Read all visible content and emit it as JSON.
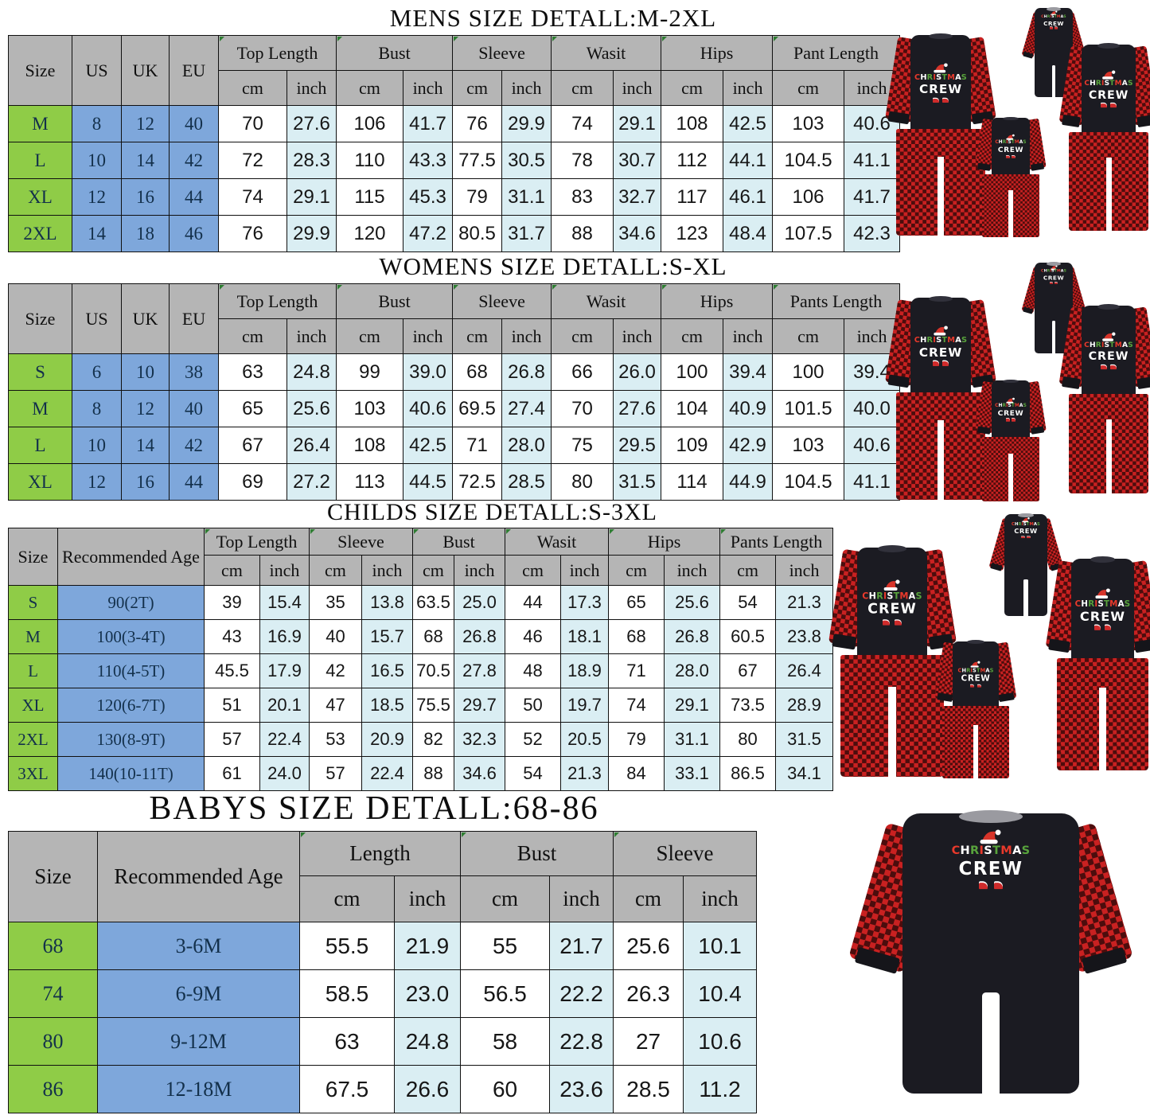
{
  "colors": {
    "header_bg": "#b5b5b5",
    "size_col_bg": "#8fcc47",
    "meta_col_bg": "#7ea7db",
    "cm_col_bg": "#ffffff",
    "inch_col_bg": "#daeef3",
    "plaid_red": "#c92121",
    "pajama_black": "#1b1b22"
  },
  "product_graphic": {
    "line1": "CHRISTMAS",
    "line2": "CREW"
  },
  "tables": [
    {
      "id": "mens",
      "title": "MENS SIZE DETALL:M-2XL",
      "single_cols": [
        "Size",
        "US",
        "UK",
        "EU"
      ],
      "group_cols": [
        "Top Length",
        "Bust",
        "Sleeve",
        "Wasit",
        "Hips",
        "Pant Length"
      ],
      "sub_labels": [
        "cm",
        "inch"
      ],
      "rows": [
        {
          "size": "M",
          "meta": [
            "8",
            "12",
            "40"
          ],
          "data": [
            "70",
            "27.6",
            "106",
            "41.7",
            "76",
            "29.9",
            "74",
            "29.1",
            "108",
            "42.5",
            "103",
            "40.6"
          ]
        },
        {
          "size": "L",
          "meta": [
            "10",
            "14",
            "42"
          ],
          "data": [
            "72",
            "28.3",
            "110",
            "43.3",
            "77.5",
            "30.5",
            "78",
            "30.7",
            "112",
            "44.1",
            "104.5",
            "41.1"
          ]
        },
        {
          "size": "XL",
          "meta": [
            "12",
            "16",
            "44"
          ],
          "data": [
            "74",
            "29.1",
            "115",
            "45.3",
            "79",
            "31.1",
            "83",
            "32.7",
            "117",
            "46.1",
            "106",
            "41.7"
          ]
        },
        {
          "size": "2XL",
          "meta": [
            "14",
            "18",
            "46"
          ],
          "data": [
            "76",
            "29.9",
            "120",
            "47.2",
            "80.5",
            "31.7",
            "88",
            "34.6",
            "123",
            "48.4",
            "107.5",
            "42.3"
          ]
        }
      ]
    },
    {
      "id": "womens",
      "title": "WOMENS SIZE DETALL:S-XL",
      "single_cols": [
        "Size",
        "US",
        "UK",
        "EU"
      ],
      "group_cols": [
        "Top Length",
        "Bust",
        "Sleeve",
        "Wasit",
        "Hips",
        "Pants Length"
      ],
      "sub_labels": [
        "cm",
        "inch"
      ],
      "rows": [
        {
          "size": "S",
          "meta": [
            "6",
            "10",
            "38"
          ],
          "data": [
            "63",
            "24.8",
            "99",
            "39.0",
            "68",
            "26.8",
            "66",
            "26.0",
            "100",
            "39.4",
            "100",
            "39.4"
          ]
        },
        {
          "size": "M",
          "meta": [
            "8",
            "12",
            "40"
          ],
          "data": [
            "65",
            "25.6",
            "103",
            "40.6",
            "69.5",
            "27.4",
            "70",
            "27.6",
            "104",
            "40.9",
            "101.5",
            "40.0"
          ]
        },
        {
          "size": "L",
          "meta": [
            "10",
            "14",
            "42"
          ],
          "data": [
            "67",
            "26.4",
            "108",
            "42.5",
            "71",
            "28.0",
            "75",
            "29.5",
            "109",
            "42.9",
            "103",
            "40.6"
          ]
        },
        {
          "size": "XL",
          "meta": [
            "12",
            "16",
            "44"
          ],
          "data": [
            "69",
            "27.2",
            "113",
            "44.5",
            "72.5",
            "28.5",
            "80",
            "31.5",
            "114",
            "44.9",
            "104.5",
            "41.1"
          ]
        }
      ]
    },
    {
      "id": "childs",
      "title": "CHILDS SIZE DETALL:S-3XL",
      "single_cols": [
        "Size",
        "Recommended Age"
      ],
      "group_cols": [
        "Top Length",
        "Sleeve",
        "Bust",
        "Wasit",
        "Hips",
        "Pants Length"
      ],
      "sub_labels": [
        "cm",
        "inch"
      ],
      "rows": [
        {
          "size": "S",
          "meta": [
            "90(2T)"
          ],
          "data": [
            "39",
            "15.4",
            "35",
            "13.8",
            "63.5",
            "25.0",
            "44",
            "17.3",
            "65",
            "25.6",
            "54",
            "21.3"
          ]
        },
        {
          "size": "M",
          "meta": [
            "100(3-4T)"
          ],
          "data": [
            "43",
            "16.9",
            "40",
            "15.7",
            "68",
            "26.8",
            "46",
            "18.1",
            "68",
            "26.8",
            "60.5",
            "23.8"
          ]
        },
        {
          "size": "L",
          "meta": [
            "110(4-5T)"
          ],
          "data": [
            "45.5",
            "17.9",
            "42",
            "16.5",
            "70.5",
            "27.8",
            "48",
            "18.9",
            "71",
            "28.0",
            "67",
            "26.4"
          ]
        },
        {
          "size": "XL",
          "meta": [
            "120(6-7T)"
          ],
          "data": [
            "51",
            "20.1",
            "47",
            "18.5",
            "75.5",
            "29.7",
            "50",
            "19.7",
            "74",
            "29.1",
            "73.5",
            "28.9"
          ]
        },
        {
          "size": "2XL",
          "meta": [
            "130(8-9T)"
          ],
          "data": [
            "57",
            "22.4",
            "53",
            "20.9",
            "82",
            "32.3",
            "52",
            "20.5",
            "79",
            "31.1",
            "80",
            "31.5"
          ]
        },
        {
          "size": "3XL",
          "meta": [
            "140(10-11T)"
          ],
          "data": [
            "61",
            "24.0",
            "57",
            "22.4",
            "88",
            "34.6",
            "54",
            "21.3",
            "84",
            "33.1",
            "86.5",
            "34.1"
          ]
        }
      ]
    },
    {
      "id": "babys",
      "title": "BABYS SIZE DETALL:68-86",
      "single_cols": [
        "Size",
        "Recommended Age"
      ],
      "group_cols": [
        "Length",
        "Bust",
        "Sleeve"
      ],
      "sub_labels": [
        "cm",
        "inch"
      ],
      "rows": [
        {
          "size": "68",
          "meta": [
            "3-6M"
          ],
          "data": [
            "55.5",
            "21.9",
            "55",
            "21.7",
            "25.6",
            "10.1"
          ]
        },
        {
          "size": "74",
          "meta": [
            "6-9M"
          ],
          "data": [
            "58.5",
            "23.0",
            "56.5",
            "22.2",
            "26.3",
            "10.4"
          ]
        },
        {
          "size": "80",
          "meta": [
            "9-12M"
          ],
          "data": [
            "63",
            "24.8",
            "58",
            "22.8",
            "27",
            "10.6"
          ]
        },
        {
          "size": "86",
          "meta": [
            "12-18M"
          ],
          "data": [
            "67.5",
            "26.6",
            "60",
            "23.6",
            "28.5",
            "11.2"
          ]
        }
      ]
    }
  ]
}
